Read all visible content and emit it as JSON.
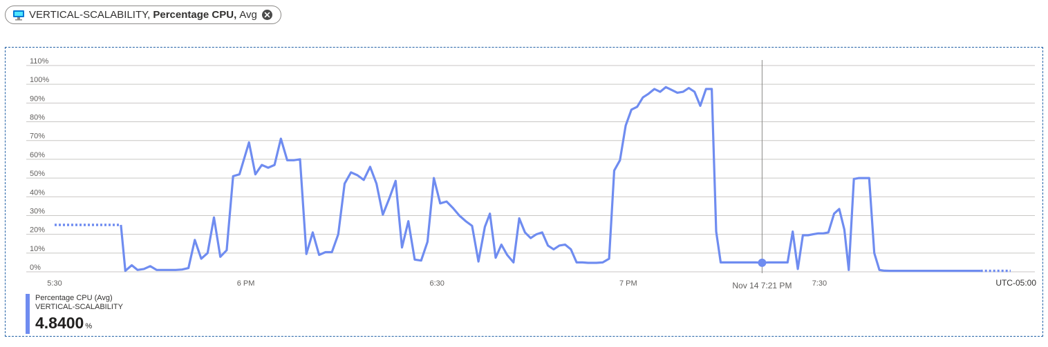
{
  "chip": {
    "resource": "VERTICAL-SCALABILITY,",
    "metric": "Percentage CPU,",
    "aggregation": "Avg"
  },
  "legend": {
    "metric_label": "Percentage CPU (Avg)",
    "resource_label": "VERTICAL-SCALABILITY",
    "value": "4.8400",
    "unit": "%"
  },
  "colors": {
    "series": "#6f8cf0",
    "grid": "#c8c6c4",
    "cursor": "#8a8886"
  },
  "chart_data": {
    "type": "line",
    "ylim": [
      0,
      110
    ],
    "y_ticks": [
      "0%",
      "10%",
      "20%",
      "30%",
      "40%",
      "50%",
      "60%",
      "70%",
      "80%",
      "90%",
      "100%",
      "110%"
    ],
    "x_ticks": [
      {
        "label": "5:30",
        "t": 0
      },
      {
        "label": "6 PM",
        "t": 30
      },
      {
        "label": "6:30",
        "t": 60
      },
      {
        "label": "7 PM",
        "t": 90
      },
      {
        "label": "7:30",
        "t": 120
      }
    ],
    "x_range": [
      0,
      150
    ],
    "timezone": "UTC-05:00",
    "cursor": {
      "label": "Nov 14 7:21 PM",
      "t": 111,
      "value": 4.84
    },
    "dotted_start": [
      [
        0,
        25
      ],
      [
        10.4,
        25
      ]
    ],
    "dotted_end": [
      [
        145.3,
        0.5
      ],
      [
        150,
        0.5
      ]
    ],
    "series": [
      {
        "name": "Percentage CPU (Avg)",
        "points": [
          [
            10.4,
            25
          ],
          [
            11.1,
            0.5
          ],
          [
            12.1,
            3.5
          ],
          [
            13,
            1
          ],
          [
            14,
            1.5
          ],
          [
            15,
            3
          ],
          [
            16,
            1
          ],
          [
            17,
            1
          ],
          [
            18,
            1
          ],
          [
            19,
            1
          ],
          [
            20,
            1.2
          ],
          [
            21,
            2
          ],
          [
            22,
            17
          ],
          [
            23,
            7
          ],
          [
            24,
            10
          ],
          [
            25,
            29
          ],
          [
            26,
            8
          ],
          [
            27,
            11.5
          ],
          [
            28,
            51
          ],
          [
            29,
            52
          ],
          [
            30.5,
            69
          ],
          [
            31.5,
            52
          ],
          [
            32.5,
            57
          ],
          [
            33.5,
            55.5
          ],
          [
            34.5,
            57
          ],
          [
            35.5,
            71
          ],
          [
            36.5,
            59.5
          ],
          [
            37.5,
            59.5
          ],
          [
            38.5,
            60
          ],
          [
            39.5,
            9.5
          ],
          [
            40.5,
            21
          ],
          [
            41.5,
            9
          ],
          [
            42.5,
            10.5
          ],
          [
            43.5,
            10.5
          ],
          [
            44.5,
            20
          ],
          [
            45.5,
            47
          ],
          [
            46.5,
            53
          ],
          [
            47.5,
            51.5
          ],
          [
            48.5,
            49
          ],
          [
            49.5,
            56
          ],
          [
            50.5,
            47
          ],
          [
            51.5,
            30.5
          ],
          [
            52.5,
            39
          ],
          [
            53.5,
            48.5
          ],
          [
            54.5,
            13
          ],
          [
            55.5,
            27
          ],
          [
            56.5,
            6.5
          ],
          [
            57.5,
            6
          ],
          [
            58.5,
            16
          ],
          [
            59.5,
            50
          ],
          [
            60.5,
            36.5
          ],
          [
            61.5,
            37.5
          ],
          [
            62.5,
            34
          ],
          [
            63.5,
            30
          ],
          [
            64.5,
            27
          ],
          [
            65.5,
            24.5
          ],
          [
            66.5,
            5.5
          ],
          [
            67.5,
            24
          ],
          [
            68.3,
            31
          ],
          [
            69.2,
            7.5
          ],
          [
            70.1,
            14.5
          ],
          [
            71,
            9
          ],
          [
            72,
            5
          ],
          [
            72.9,
            28.5
          ],
          [
            73.8,
            21
          ],
          [
            74.7,
            18
          ],
          [
            75.6,
            20
          ],
          [
            76.5,
            21
          ],
          [
            77.4,
            14
          ],
          [
            78.3,
            12
          ],
          [
            79.2,
            14
          ],
          [
            80.1,
            14.5
          ],
          [
            81,
            12
          ],
          [
            81.9,
            5
          ],
          [
            82.8,
            5
          ],
          [
            83.7,
            4.8
          ],
          [
            85,
            4.8
          ],
          [
            86,
            5
          ],
          [
            87,
            7
          ],
          [
            87.8,
            54
          ],
          [
            88.7,
            59.5
          ],
          [
            89.6,
            78
          ],
          [
            90.5,
            86.5
          ],
          [
            91.4,
            88
          ],
          [
            92.3,
            93
          ],
          [
            93.2,
            95
          ],
          [
            94.1,
            97.5
          ],
          [
            95,
            96
          ],
          [
            95.9,
            98.5
          ],
          [
            96.8,
            97
          ],
          [
            97.7,
            95.5
          ],
          [
            98.6,
            96
          ],
          [
            99.5,
            98
          ],
          [
            100.4,
            96
          ],
          [
            101.3,
            88.5
          ],
          [
            102.2,
            97.5
          ],
          [
            103.1,
            97.5
          ],
          [
            103.8,
            21.5
          ],
          [
            104.5,
            5
          ],
          [
            106,
            5
          ],
          [
            107,
            5
          ],
          [
            108,
            5
          ],
          [
            109,
            5
          ],
          [
            110,
            5
          ],
          [
            111,
            4.84
          ],
          [
            112,
            5
          ],
          [
            113,
            5
          ],
          [
            114,
            5
          ],
          [
            115,
            5
          ],
          [
            115.8,
            21.5
          ],
          [
            116.6,
            1.5
          ],
          [
            117.4,
            19.5
          ],
          [
            118.2,
            19.5
          ],
          [
            119,
            20
          ],
          [
            119.8,
            20.5
          ],
          [
            120.6,
            20.5
          ],
          [
            121.4,
            21
          ],
          [
            122.3,
            31
          ],
          [
            123.1,
            33.5
          ],
          [
            123.9,
            22.5
          ],
          [
            124.6,
            1
          ],
          [
            125.4,
            49.5
          ],
          [
            126.2,
            50
          ],
          [
            127,
            50
          ],
          [
            127.8,
            50
          ],
          [
            128.6,
            10
          ],
          [
            129.4,
            1
          ],
          [
            130.2,
            0.6
          ],
          [
            131,
            0.5
          ],
          [
            135,
            0.5
          ],
          [
            140,
            0.5
          ],
          [
            145.3,
            0.5
          ]
        ]
      }
    ]
  }
}
